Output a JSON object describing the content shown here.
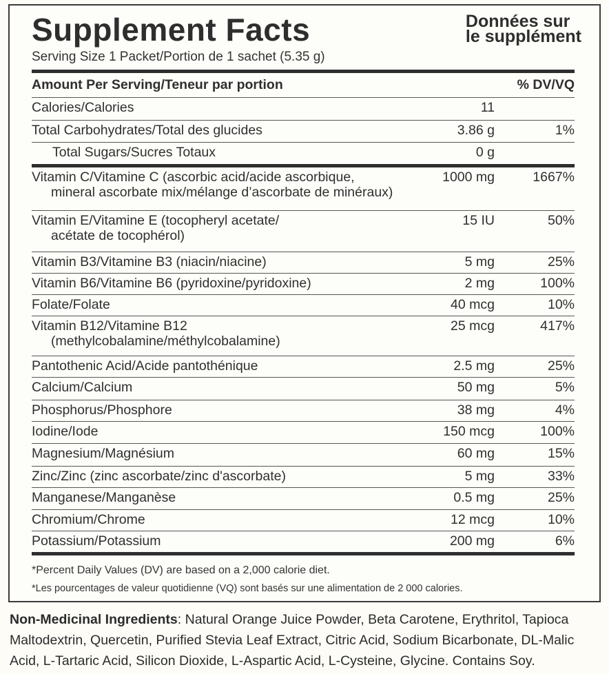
{
  "label": {
    "title_en": "Supplement Facts",
    "title_fr_line1": "Données sur",
    "title_fr_line2": "le supplément",
    "serving": "Serving Size 1 Packet/Portion de 1 sachet (5.35 g)",
    "header_left": "Amount Per Serving/Teneur par portion",
    "header_right": "% DV/VQ",
    "rows": [
      {
        "name": "Calories/Calories",
        "amount": "11",
        "dv": ""
      },
      {
        "name": "Total Carbohydrates/Total des glucides",
        "amount": "3.86 g",
        "dv": "1%"
      },
      {
        "name": "Total Sugars/Sucres Totaux",
        "amount": "0 g",
        "dv": ""
      },
      {
        "name": "Vitamin C/Vitamine C (ascorbic acid/acide ascorbique,",
        "name2": "mineral ascorbate mix/mélange d’ascorbate de minéraux)",
        "amount": "1000 mg",
        "dv": "1667%"
      },
      {
        "name": "Vitamin E/Vitamine E (tocopheryl acetate/",
        "name2": "acétate de tocophérol)",
        "amount": "15 IU",
        "dv": "50%"
      },
      {
        "name": "Vitamin B3/Vitamine B3 (niacin/niacine)",
        "amount": "5 mg",
        "dv": "25%"
      },
      {
        "name": "Vitamin B6/Vitamine B6 (pyridoxine/pyridoxine)",
        "amount": "2 mg",
        "dv": "100%"
      },
      {
        "name": "Folate/Folate",
        "amount": "40 mcg",
        "dv": "10%"
      },
      {
        "name": "Vitamin B12/Vitamine B12",
        "name2": "(methylcobalamine/méthylcobalamine)",
        "amount": "25 mcg",
        "dv": "417%"
      },
      {
        "name": "Pantothenic Acid/Acide pantothénique",
        "amount": "2.5 mg",
        "dv": "25%"
      },
      {
        "name": "Calcium/Calcium",
        "amount": "50 mg",
        "dv": "5%"
      },
      {
        "name": "Phosphorus/Phosphore",
        "amount": "38 mg",
        "dv": "4%"
      },
      {
        "name": "Iodine/Iode",
        "amount": "150 mcg",
        "dv": "100%"
      },
      {
        "name": "Magnesium/Magnésium",
        "amount": "60 mg",
        "dv": "15%"
      },
      {
        "name": "Zinc/Zinc (zinc ascorbate/zinc d'ascorbate)",
        "amount": "5 mg",
        "dv": "33%"
      },
      {
        "name": "Manganese/Manganèse",
        "amount": "0.5 mg",
        "dv": "25%"
      },
      {
        "name": "Chromium/Chrome",
        "amount": "12 mcg",
        "dv": "10%"
      },
      {
        "name": "Potassium/Potassium",
        "amount": "200 mg",
        "dv": "6%"
      }
    ],
    "footnote_en": "*Percent Daily Values (DV) are based on a 2,000 calorie diet.",
    "footnote_fr": "*Les pourcentages de valeur quotidienne (VQ) sont basés sur une alimentation de 2 000 calories."
  },
  "ingredients": {
    "heading": "Non-Medicinal Ingredients",
    "text": ": Natural Orange Juice Powder, Beta Carotene, Erythritol, Tapioca Maltodextrin, Quercetin, Purified Stevia Leaf Extract, Citric Acid, Sodium Bicarbonate, DL-Malic Acid, L-Tartaric Acid, Silicon Dioxide, L-Aspartic Acid, L-Cysteine, Glycine. Contains Soy."
  }
}
